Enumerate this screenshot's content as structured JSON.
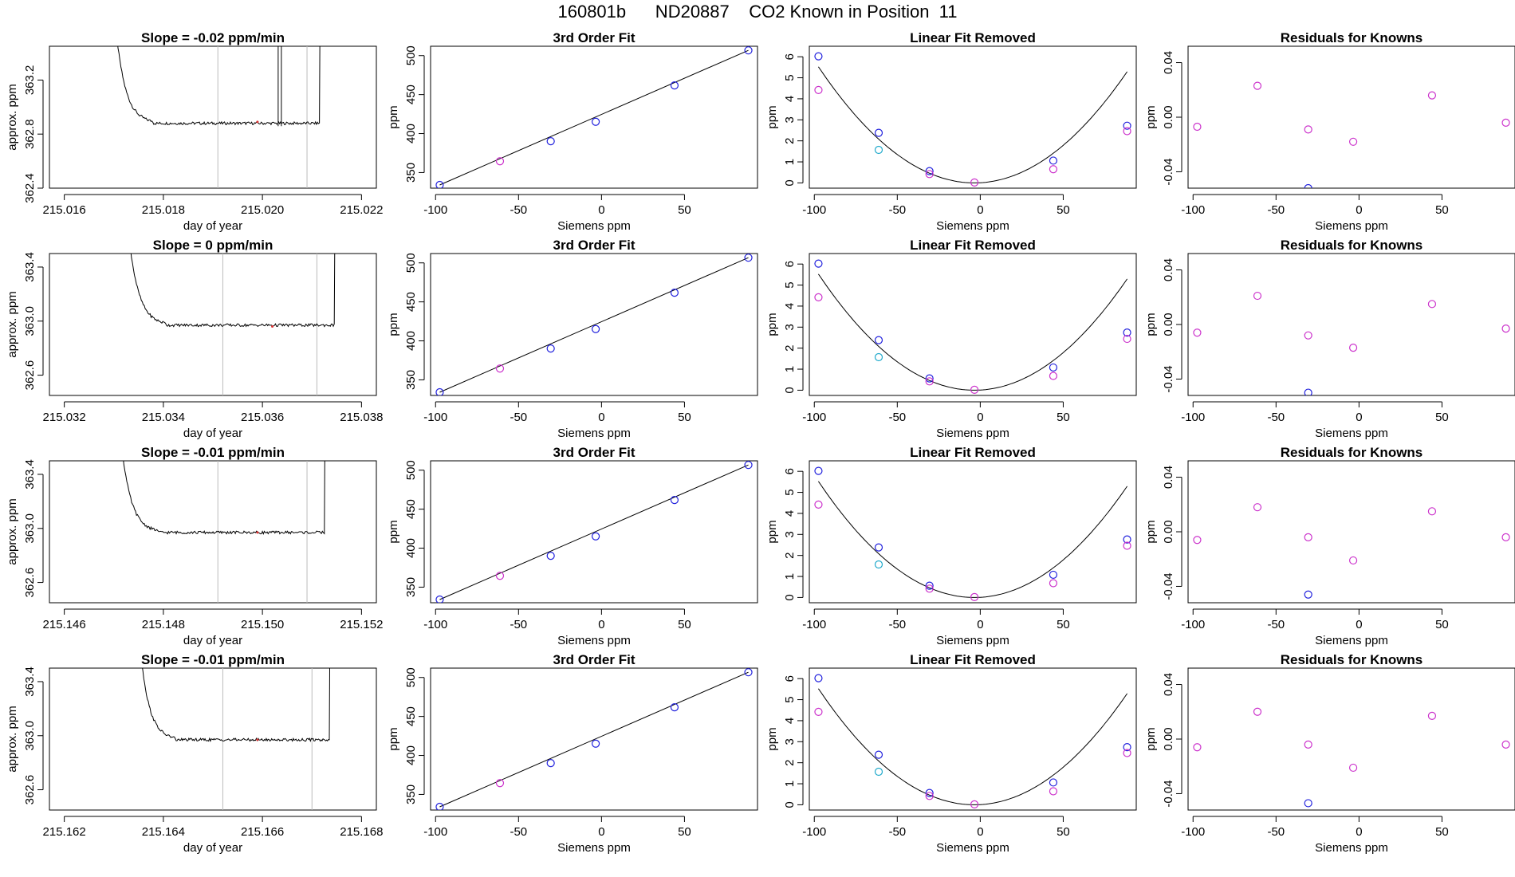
{
  "page_title": "160801b      ND20887    CO2 Known in Position  11",
  "colors": {
    "trace": "#000000",
    "vline": "#bbbbbb",
    "circle_blue": "#2222dd",
    "circle_magenta": "#cc33cc",
    "circle_cyan": "#22aacc",
    "curve": "#000000"
  },
  "chart_data": [
    {
      "type": "line",
      "title": "Slope =  -0.02  ppm/min",
      "xlabel": "day of year",
      "ylabel": "approx. ppm",
      "xlim": [
        215.0157,
        215.0223
      ],
      "ylim": [
        362.4,
        363.45
      ],
      "xticks": [
        215.016,
        215.018,
        215.02,
        215.022
      ],
      "xtick_labels": [
        "215.016",
        "215.018",
        "215.020",
        "215.022"
      ],
      "yticks": [
        362.4,
        362.8,
        363.2
      ],
      "ytick_labels": [
        "362.4",
        "362.8",
        "363.2"
      ],
      "trace_start": 215.01685,
      "trace_end": 215.02115,
      "trace_level": 362.88,
      "vlines": [
        215.0191,
        215.0209
      ],
      "spike_at": 215.02035,
      "red_mark": [
        215.0199,
        362.89
      ]
    },
    {
      "type": "line",
      "title": "3rd Order Fit",
      "xlabel": "Siemens ppm",
      "ylabel": "ppm",
      "xlim": [
        -103,
        94
      ],
      "ylim": [
        330,
        512
      ],
      "xticks": [
        -100,
        -50,
        0,
        50
      ],
      "xtick_labels": [
        "-100",
        "-50",
        "0",
        "50"
      ],
      "yticks": [
        350,
        400,
        450,
        500
      ],
      "ytick_labels": [
        "350",
        "400",
        "450",
        "500"
      ],
      "points": [
        [
          -97.5,
          334.1,
          "blue"
        ],
        [
          -61.2,
          364.5,
          "magenta"
        ],
        [
          -30.6,
          390.2,
          "blue"
        ],
        [
          -3.5,
          415.1,
          "blue"
        ],
        [
          44.0,
          461.8,
          "blue"
        ],
        [
          88.5,
          506.7,
          "blue"
        ]
      ]
    },
    {
      "type": "scatter",
      "title": "Linear Fit Removed",
      "xlabel": "Siemens ppm",
      "ylabel": "ppm",
      "xlim": [
        -103,
        94
      ],
      "ylim": [
        -0.25,
        6.5
      ],
      "xticks": [
        -100,
        -50,
        0,
        50
      ],
      "xtick_labels": [
        "-100",
        "-50",
        "0",
        "50"
      ],
      "yticks": [
        0,
        1,
        2,
        3,
        4,
        5,
        6
      ],
      "ytick_labels": [
        "0",
        "1",
        "2",
        "3",
        "4",
        "5",
        "6"
      ],
      "points": [
        [
          -97.5,
          6.02,
          "blue"
        ],
        [
          -97.5,
          4.42,
          "magenta"
        ],
        [
          -61.2,
          2.38,
          "blue"
        ],
        [
          -61.2,
          1.57,
          "cyan"
        ],
        [
          -30.6,
          0.56,
          "blue"
        ],
        [
          -30.6,
          0.42,
          "magenta"
        ],
        [
          -3.5,
          0.02,
          "magenta"
        ],
        [
          44.0,
          1.06,
          "blue"
        ],
        [
          44.0,
          0.65,
          "magenta"
        ],
        [
          88.5,
          2.72,
          "blue"
        ],
        [
          88.5,
          2.46,
          "magenta"
        ]
      ],
      "curve": [
        -97.5,
        88.5,
        0.000625,
        0.0
      ]
    },
    {
      "type": "scatter",
      "title": "Residuals for Knowns",
      "xlabel": "Siemens ppm",
      "ylabel": "ppm",
      "xlim": [
        -103,
        94
      ],
      "ylim": [
        -0.052,
        0.052
      ],
      "xticks": [
        -100,
        -50,
        0,
        50
      ],
      "xtick_labels": [
        "-100",
        "-50",
        "0",
        "50"
      ],
      "yticks": [
        -0.04,
        0.0,
        0.04
      ],
      "ytick_labels": [
        "-0.04",
        "0.00",
        "0.04"
      ],
      "points": [
        [
          -97.5,
          -0.007,
          "magenta"
        ],
        [
          -61.2,
          0.023,
          "magenta"
        ],
        [
          -30.6,
          -0.009,
          "magenta"
        ],
        [
          -30.6,
          -0.052,
          "blue"
        ],
        [
          -3.5,
          -0.018,
          "magenta"
        ],
        [
          44.0,
          0.016,
          "magenta"
        ],
        [
          88.5,
          -0.004,
          "magenta"
        ]
      ]
    },
    {
      "type": "line",
      "title": "Slope =  0  ppm/min",
      "xlabel": "day of year",
      "ylabel": "approx. ppm",
      "xlim": [
        215.0317,
        215.0383
      ],
      "ylim": [
        362.45,
        363.5
      ],
      "xticks": [
        215.032,
        215.034,
        215.036,
        215.038
      ],
      "xtick_labels": [
        "215.032",
        "215.034",
        "215.036",
        "215.038"
      ],
      "yticks": [
        362.6,
        363.0,
        363.4
      ],
      "ytick_labels": [
        "362.6",
        "363.0",
        "363.4"
      ],
      "trace_start": 215.0331,
      "trace_end": 215.03745,
      "trace_level": 362.97,
      "vlines": [
        215.0352,
        215.0371
      ],
      "spike_at": null,
      "red_mark": [
        215.0362,
        362.96
      ]
    },
    {
      "type": "line",
      "title": "3rd Order Fit",
      "xlabel": "Siemens ppm",
      "ylabel": "ppm",
      "xlim": [
        -103,
        94
      ],
      "ylim": [
        330,
        512
      ],
      "xticks": [
        -100,
        -50,
        0,
        50
      ],
      "xtick_labels": [
        "-100",
        "-50",
        "0",
        "50"
      ],
      "yticks": [
        350,
        400,
        450,
        500
      ],
      "ytick_labels": [
        "350",
        "400",
        "450",
        "500"
      ],
      "points": [
        [
          -97.5,
          334.1,
          "blue"
        ],
        [
          -61.2,
          364.5,
          "magenta"
        ],
        [
          -30.6,
          390.2,
          "blue"
        ],
        [
          -3.5,
          415.1,
          "blue"
        ],
        [
          44.0,
          461.8,
          "blue"
        ],
        [
          88.5,
          506.7,
          "blue"
        ]
      ]
    },
    {
      "type": "scatter",
      "title": "Linear Fit Removed",
      "xlabel": "Siemens ppm",
      "ylabel": "ppm",
      "xlim": [
        -103,
        94
      ],
      "ylim": [
        -0.25,
        6.5
      ],
      "xticks": [
        -100,
        -50,
        0,
        50
      ],
      "xtick_labels": [
        "-100",
        "-50",
        "0",
        "50"
      ],
      "yticks": [
        0,
        1,
        2,
        3,
        4,
        5,
        6
      ],
      "ytick_labels": [
        "0",
        "1",
        "2",
        "3",
        "4",
        "5",
        "6"
      ],
      "points": [
        [
          -97.5,
          6.02,
          "blue"
        ],
        [
          -97.5,
          4.42,
          "magenta"
        ],
        [
          -61.2,
          2.38,
          "blue"
        ],
        [
          -61.2,
          1.57,
          "cyan"
        ],
        [
          -30.6,
          0.56,
          "blue"
        ],
        [
          -30.6,
          0.42,
          "magenta"
        ],
        [
          -3.5,
          0.02,
          "magenta"
        ],
        [
          44.0,
          1.08,
          "blue"
        ],
        [
          44.0,
          0.68,
          "magenta"
        ],
        [
          88.5,
          2.74,
          "blue"
        ],
        [
          88.5,
          2.44,
          "magenta"
        ]
      ],
      "curve": [
        -97.5,
        88.5,
        0.000625,
        0.0
      ]
    },
    {
      "type": "scatter",
      "title": "Residuals for Knowns",
      "xlabel": "Siemens ppm",
      "ylabel": "ppm",
      "xlim": [
        -103,
        94
      ],
      "ylim": [
        -0.052,
        0.052
      ],
      "xticks": [
        -100,
        -50,
        0,
        50
      ],
      "xtick_labels": [
        "-100",
        "-50",
        "0",
        "50"
      ],
      "yticks": [
        -0.04,
        0.0,
        0.04
      ],
      "ytick_labels": [
        "-0.04",
        "0.00",
        "0.04"
      ],
      "points": [
        [
          -97.5,
          -0.006,
          "magenta"
        ],
        [
          -61.2,
          0.021,
          "magenta"
        ],
        [
          -30.6,
          -0.008,
          "magenta"
        ],
        [
          -30.6,
          -0.05,
          "blue"
        ],
        [
          -3.5,
          -0.017,
          "magenta"
        ],
        [
          44.0,
          0.015,
          "magenta"
        ],
        [
          88.5,
          -0.003,
          "magenta"
        ]
      ]
    },
    {
      "type": "line",
      "title": "Slope =  -0.01  ppm/min",
      "xlabel": "day of year",
      "ylabel": "approx. ppm",
      "xlim": [
        215.1457,
        215.1523
      ],
      "ylim": [
        362.45,
        363.5
      ],
      "xticks": [
        215.146,
        215.148,
        215.15,
        215.152
      ],
      "xtick_labels": [
        "215.146",
        "215.148",
        "215.150",
        "215.152"
      ],
      "yticks": [
        362.6,
        363.0,
        363.4
      ],
      "ytick_labels": [
        "362.6",
        "363.0",
        "363.4"
      ],
      "trace_start": 215.14695,
      "trace_end": 215.15125,
      "trace_level": 362.97,
      "vlines": [
        215.1491,
        215.1509
      ],
      "spike_at": null,
      "red_mark": [
        215.1499,
        362.97
      ]
    },
    {
      "type": "line",
      "title": "3rd Order Fit",
      "xlabel": "Siemens ppm",
      "ylabel": "ppm",
      "xlim": [
        -103,
        94
      ],
      "ylim": [
        330,
        512
      ],
      "xticks": [
        -100,
        -50,
        0,
        50
      ],
      "xtick_labels": [
        "-100",
        "-50",
        "0",
        "50"
      ],
      "yticks": [
        350,
        400,
        450,
        500
      ],
      "ytick_labels": [
        "350",
        "400",
        "450",
        "500"
      ],
      "points": [
        [
          -97.5,
          334.1,
          "blue"
        ],
        [
          -61.2,
          364.5,
          "magenta"
        ],
        [
          -30.6,
          390.2,
          "blue"
        ],
        [
          -3.5,
          415.1,
          "blue"
        ],
        [
          44.0,
          461.8,
          "blue"
        ],
        [
          88.5,
          506.7,
          "blue"
        ]
      ]
    },
    {
      "type": "scatter",
      "title": "Linear Fit Removed",
      "xlabel": "Siemens ppm",
      "ylabel": "ppm",
      "xlim": [
        -103,
        94
      ],
      "ylim": [
        -0.25,
        6.5
      ],
      "xticks": [
        -100,
        -50,
        0,
        50
      ],
      "xtick_labels": [
        "-100",
        "-50",
        "0",
        "50"
      ],
      "yticks": [
        0,
        1,
        2,
        3,
        4,
        5,
        6
      ],
      "ytick_labels": [
        "0",
        "1",
        "2",
        "3",
        "4",
        "5",
        "6"
      ],
      "points": [
        [
          -97.5,
          6.02,
          "blue"
        ],
        [
          -97.5,
          4.42,
          "magenta"
        ],
        [
          -61.2,
          2.38,
          "blue"
        ],
        [
          -61.2,
          1.57,
          "cyan"
        ],
        [
          -30.6,
          0.56,
          "blue"
        ],
        [
          -30.6,
          0.42,
          "magenta"
        ],
        [
          -3.5,
          0.02,
          "magenta"
        ],
        [
          44.0,
          1.08,
          "blue"
        ],
        [
          44.0,
          0.68,
          "magenta"
        ],
        [
          88.5,
          2.76,
          "blue"
        ],
        [
          88.5,
          2.46,
          "magenta"
        ]
      ],
      "curve": [
        -97.5,
        88.5,
        0.000625,
        0.0
      ]
    },
    {
      "type": "scatter",
      "title": "Residuals for Knowns",
      "xlabel": "Siemens ppm",
      "ylabel": "ppm",
      "xlim": [
        -103,
        94
      ],
      "ylim": [
        -0.052,
        0.052
      ],
      "xticks": [
        -100,
        -50,
        0,
        50
      ],
      "xtick_labels": [
        "-100",
        "-50",
        "0",
        "50"
      ],
      "yticks": [
        -0.04,
        0.0,
        0.04
      ],
      "ytick_labels": [
        "-0.04",
        "0.00",
        "0.04"
      ],
      "points": [
        [
          -97.5,
          -0.006,
          "magenta"
        ],
        [
          -61.2,
          0.018,
          "magenta"
        ],
        [
          -30.6,
          -0.004,
          "magenta"
        ],
        [
          -30.6,
          -0.046,
          "blue"
        ],
        [
          -3.5,
          -0.021,
          "magenta"
        ],
        [
          44.0,
          0.015,
          "magenta"
        ],
        [
          88.5,
          -0.004,
          "magenta"
        ]
      ]
    },
    {
      "type": "line",
      "title": "Slope =  -0.01  ppm/min",
      "xlabel": "day of year",
      "ylabel": "approx. ppm",
      "xlim": [
        215.1617,
        215.1683
      ],
      "ylim": [
        362.45,
        363.5
      ],
      "xticks": [
        215.162,
        215.164,
        215.166,
        215.168
      ],
      "xtick_labels": [
        "215.162",
        "215.164",
        "215.166",
        "215.168"
      ],
      "yticks": [
        362.6,
        363.0,
        363.4
      ],
      "ytick_labels": [
        "362.6",
        "363.0",
        "363.4"
      ],
      "trace_start": 215.16335,
      "trace_end": 215.16735,
      "trace_level": 362.97,
      "vlines": [
        215.1652,
        215.167
      ],
      "spike_at": null,
      "red_mark": [
        215.1659,
        362.97
      ]
    },
    {
      "type": "line",
      "title": "3rd Order Fit",
      "xlabel": "Siemens ppm",
      "ylabel": "ppm",
      "xlim": [
        -103,
        94
      ],
      "ylim": [
        330,
        512
      ],
      "xticks": [
        -100,
        -50,
        0,
        50
      ],
      "xtick_labels": [
        "-100",
        "-50",
        "0",
        "50"
      ],
      "yticks": [
        350,
        400,
        450,
        500
      ],
      "ytick_labels": [
        "350",
        "400",
        "450",
        "500"
      ],
      "points": [
        [
          -97.5,
          334.1,
          "blue"
        ],
        [
          -61.2,
          364.5,
          "magenta"
        ],
        [
          -30.6,
          390.2,
          "blue"
        ],
        [
          -3.5,
          415.1,
          "blue"
        ],
        [
          44.0,
          461.8,
          "blue"
        ],
        [
          88.5,
          506.7,
          "blue"
        ]
      ]
    },
    {
      "type": "scatter",
      "title": "Linear Fit Removed",
      "xlabel": "Siemens ppm",
      "ylabel": "ppm",
      "xlim": [
        -103,
        94
      ],
      "ylim": [
        -0.25,
        6.5
      ],
      "xticks": [
        -100,
        -50,
        0,
        50
      ],
      "xtick_labels": [
        "-100",
        "-50",
        "0",
        "50"
      ],
      "yticks": [
        0,
        1,
        2,
        3,
        4,
        5,
        6
      ],
      "ytick_labels": [
        "0",
        "1",
        "2",
        "3",
        "4",
        "5",
        "6"
      ],
      "points": [
        [
          -97.5,
          6.02,
          "blue"
        ],
        [
          -97.5,
          4.42,
          "magenta"
        ],
        [
          -61.2,
          2.38,
          "blue"
        ],
        [
          -61.2,
          1.57,
          "cyan"
        ],
        [
          -30.6,
          0.56,
          "blue"
        ],
        [
          -30.6,
          0.42,
          "magenta"
        ],
        [
          -3.5,
          0.02,
          "magenta"
        ],
        [
          44.0,
          1.06,
          "blue"
        ],
        [
          44.0,
          0.64,
          "magenta"
        ],
        [
          88.5,
          2.74,
          "blue"
        ],
        [
          88.5,
          2.46,
          "magenta"
        ]
      ],
      "curve": [
        -97.5,
        88.5,
        0.000625,
        0.0
      ]
    },
    {
      "type": "scatter",
      "title": "Residuals for Knowns",
      "xlabel": "Siemens ppm",
      "ylabel": "ppm",
      "xlim": [
        -103,
        94
      ],
      "ylim": [
        -0.052,
        0.052
      ],
      "xticks": [
        -100,
        -50,
        0,
        50
      ],
      "xtick_labels": [
        "-100",
        "-50",
        "0",
        "50"
      ],
      "yticks": [
        -0.04,
        0.0,
        0.04
      ],
      "ytick_labels": [
        "-0.04",
        "0.00",
        "0.04"
      ],
      "points": [
        [
          -97.5,
          -0.006,
          "magenta"
        ],
        [
          -61.2,
          0.02,
          "magenta"
        ],
        [
          -30.6,
          -0.004,
          "magenta"
        ],
        [
          -30.6,
          -0.047,
          "blue"
        ],
        [
          -3.5,
          -0.021,
          "magenta"
        ],
        [
          44.0,
          0.017,
          "magenta"
        ],
        [
          88.5,
          -0.004,
          "magenta"
        ]
      ]
    }
  ]
}
